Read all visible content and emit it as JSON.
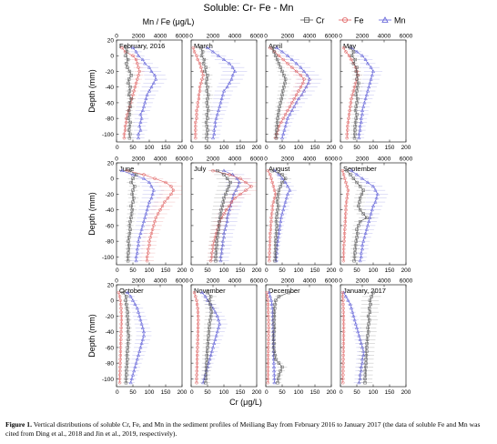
{
  "figure": {
    "title": "Soluble: Cr- Fe - Mn",
    "top_axis_label": "Mn / Fe (μg/L)",
    "bottom_axis_label": "Cr (μg/L)",
    "y_axis_label": "Depth (mm)",
    "caption_bold": "Figure 1.",
    "caption_text": "Vertical distributions of soluble Cr, Fe, and Mn in the sediment profiles of Meiliang Bay from February 2016 to January 2017 (the data of soluble Fe and Mn was cited from Ding et al., 2018 and Jin et al., 2019, respectively)."
  },
  "legend": [
    {
      "name": "Cr",
      "color": "#555555",
      "marker": "square"
    },
    {
      "name": "Fe",
      "color": "#e06060",
      "marker": "circle"
    },
    {
      "name": "Mn",
      "color": "#6060d8",
      "marker": "triangle"
    }
  ],
  "axes": {
    "depth_ticks": [
      20,
      0,
      -20,
      -40,
      -60,
      -80,
      -100
    ],
    "cr_ticks": [
      0,
      50,
      100,
      150,
      200
    ],
    "mnfe_ticks": [
      0,
      2000,
      4000,
      6000
    ],
    "cr_range": [
      0,
      200
    ],
    "mnfe_range": [
      0,
      6000
    ],
    "depth_range": [
      -110,
      20
    ]
  },
  "chart_data": {
    "type": "line",
    "depth_mm": [
      10,
      5,
      0,
      -5,
      -10,
      -15,
      -20,
      -25,
      -30,
      -35,
      -40,
      -45,
      -50,
      -55,
      -60,
      -65,
      -70,
      -75,
      -80,
      -85,
      -90,
      -95,
      -100,
      -105
    ],
    "panels": [
      {
        "month": "February, 2016",
        "Cr": [
          30,
          32,
          28,
          35,
          30,
          33,
          40,
          45,
          38,
          36,
          42,
          40,
          38,
          45,
          40,
          42,
          38,
          40,
          36,
          42,
          40,
          38,
          41,
          40
        ],
        "Fe": [
          500,
          800,
          1500,
          1800,
          1900,
          2000,
          2100,
          2000,
          1900,
          1800,
          1700,
          1600,
          1500,
          1400,
          1300,
          1200,
          1100,
          1000,
          900,
          900,
          800,
          800,
          700,
          700
        ],
        "Mn": [
          1500,
          1800,
          2000,
          2400,
          2600,
          3000,
          3200,
          3500,
          3600,
          3400,
          3200,
          3000,
          2800,
          2700,
          2600,
          2500,
          2400,
          2200,
          2300,
          2200,
          2100,
          2200,
          2000,
          2000
        ]
      },
      {
        "month": "March",
        "Cr": [
          30,
          35,
          32,
          40,
          38,
          45,
          42,
          50,
          48,
          46,
          50,
          48,
          52,
          50,
          48,
          50,
          52,
          48,
          50,
          46,
          48,
          50,
          48,
          47
        ],
        "Fe": [
          200,
          300,
          500,
          600,
          800,
          900,
          1000,
          1100,
          1000,
          900,
          800,
          800,
          700,
          700,
          600,
          600,
          500,
          500,
          500,
          400,
          400,
          400,
          400,
          400
        ],
        "Mn": [
          1500,
          2000,
          2500,
          3000,
          3500,
          3800,
          4000,
          3800,
          3700,
          3500,
          3300,
          3000,
          2900,
          2800,
          2700,
          2600,
          2500,
          2400,
          2300,
          2200,
          2200,
          2100,
          2100,
          2000
        ]
      },
      {
        "month": "April",
        "Cr": [
          20,
          25,
          30,
          35,
          40,
          45,
          50,
          55,
          60,
          58,
          55,
          52,
          50,
          48,
          45,
          42,
          40,
          38,
          36,
          35,
          34,
          33,
          32,
          32
        ],
        "Fe": [
          400,
          800,
          1200,
          1600,
          2000,
          2400,
          2800,
          3200,
          3500,
          3400,
          3200,
          3000,
          2800,
          2600,
          2400,
          2200,
          2000,
          1800,
          1600,
          1400,
          1200,
          1100,
          1000,
          900
        ],
        "Mn": [
          1000,
          1500,
          2000,
          2400,
          2800,
          3200,
          3500,
          3800,
          4000,
          3900,
          3700,
          3500,
          3300,
          3000,
          2800,
          2600,
          2400,
          2200,
          2000,
          1900,
          1800,
          1700,
          1600,
          1500
        ]
      },
      {
        "month": "May",
        "Cr": [
          30,
          40,
          35,
          45,
          40,
          50,
          48,
          52,
          50,
          55,
          52,
          50,
          48,
          52,
          50,
          48,
          46,
          50,
          48,
          46,
          45,
          44,
          44,
          43
        ],
        "Fe": [
          300,
          500,
          800,
          1000,
          1200,
          1400,
          1500,
          1600,
          1500,
          1400,
          1300,
          1200,
          1100,
          1000,
          950,
          900,
          850,
          800,
          750,
          700,
          650,
          650,
          600,
          600
        ],
        "Mn": [
          1000,
          1500,
          2000,
          2300,
          2500,
          2800,
          3000,
          2900,
          2800,
          2700,
          2600,
          2500,
          2400,
          2300,
          2200,
          2100,
          2000,
          2000,
          1900,
          1900,
          1800,
          1800,
          1700,
          1700
        ]
      },
      {
        "month": "June",
        "Cr": [
          40,
          60,
          50,
          45,
          55,
          50,
          48,
          52,
          50,
          45,
          48,
          46,
          44,
          42,
          40,
          42,
          40,
          38,
          36,
          38,
          37,
          36,
          35,
          35
        ],
        "Fe": [
          1000,
          2500,
          3500,
          4500,
          5000,
          5200,
          5000,
          4700,
          4400,
          4200,
          4000,
          3800,
          3600,
          3500,
          3400,
          3300,
          3200,
          3100,
          3000,
          3000,
          2900,
          2900,
          2800,
          2800
        ],
        "Mn": [
          500,
          1500,
          2500,
          3000,
          3200,
          3400,
          3300,
          3200,
          3000,
          2900,
          2800,
          2700,
          2600,
          2500,
          2400,
          2300,
          2200,
          2100,
          2000,
          2000,
          1900,
          1900,
          1800,
          1800
        ]
      },
      {
        "month": "July",
        "Cr": [
          80,
          100,
          110,
          120,
          115,
          110,
          105,
          100,
          98,
          95,
          92,
          90,
          88,
          86,
          85,
          84,
          82,
          80,
          78,
          78,
          77,
          76,
          75,
          75
        ],
        "Fe": [
          2000,
          3500,
          4500,
          5000,
          5500,
          5000,
          4500,
          4000,
          3700,
          3500,
          3200,
          3000,
          2800,
          2600,
          2500,
          2400,
          2300,
          2200,
          2100,
          2000,
          2000,
          1900,
          1900,
          1800
        ],
        "Mn": [
          3000,
          3800,
          4200,
          4400,
          4300,
          4100,
          3900,
          3800,
          3700,
          3600,
          3500,
          3400,
          3300,
          3300,
          3200,
          3100,
          3000,
          3000,
          2900,
          2900,
          2800,
          2800,
          2700,
          2700
        ]
      },
      {
        "month": "August",
        "Cr": [
          20,
          50,
          60,
          50,
          45,
          40,
          38,
          36,
          35,
          38,
          36,
          34,
          33,
          32,
          34,
          33,
          32,
          31,
          30,
          30,
          30,
          29,
          29,
          28
        ],
        "Fe": [
          200,
          400,
          500,
          600,
          700,
          800,
          900,
          800,
          700,
          600,
          600,
          550,
          500,
          500,
          450,
          450,
          400,
          400,
          380,
          360,
          350,
          340,
          330,
          320
        ],
        "Mn": [
          800,
          1200,
          1500,
          1800,
          2000,
          2200,
          2000,
          1900,
          1800,
          1700,
          1600,
          1500,
          1400,
          1350,
          1300,
          1250,
          1200,
          1150,
          1100,
          1050,
          1000,
          1000,
          950,
          950
        ]
      },
      {
        "month": "September",
        "Cr": [
          20,
          30,
          40,
          50,
          60,
          70,
          65,
          60,
          58,
          55,
          60,
          70,
          80,
          60,
          55,
          50,
          52,
          50,
          48,
          46,
          45,
          44,
          43,
          42
        ],
        "Fe": [
          200,
          300,
          400,
          500,
          600,
          700,
          650,
          600,
          550,
          500,
          500,
          480,
          460,
          440,
          420,
          400,
          380,
          360,
          340,
          320,
          300,
          300,
          280,
          280
        ],
        "Mn": [
          1000,
          1500,
          2000,
          2500,
          3000,
          3200,
          3400,
          3300,
          3200,
          3000,
          2900,
          2800,
          2700,
          2600,
          2500,
          2400,
          2300,
          2200,
          2100,
          2000,
          2000,
          1900,
          1900,
          1800
        ]
      },
      {
        "month": "October",
        "Cr": [
          20,
          30,
          28,
          30,
          32,
          34,
          33,
          35,
          34,
          36,
          35,
          37,
          36,
          35,
          34,
          33,
          32,
          33,
          32,
          31,
          30,
          30,
          29,
          29
        ],
        "Fe": [
          200,
          300,
          350,
          400,
          420,
          430,
          440,
          450,
          440,
          430,
          420,
          410,
          400,
          390,
          380,
          370,
          360,
          350,
          340,
          330,
          320,
          310,
          300,
          300
        ],
        "Mn": [
          1000,
          1300,
          1500,
          1700,
          1900,
          2000,
          2100,
          2200,
          2300,
          2400,
          2500,
          2500,
          2400,
          2300,
          2200,
          2100,
          2000,
          1900,
          1800,
          1700,
          1600,
          1500,
          1400,
          1300
        ]
      },
      {
        "month": "November",
        "Cr": [
          50,
          60,
          55,
          58,
          60,
          62,
          60,
          58,
          56,
          55,
          54,
          53,
          52,
          51,
          50,
          49,
          48,
          48,
          47,
          46,
          46,
          45,
          45,
          44
        ],
        "Fe": [
          300,
          400,
          500,
          550,
          600,
          620,
          640,
          650,
          640,
          630,
          620,
          610,
          600,
          590,
          580,
          570,
          560,
          550,
          540,
          530,
          520,
          510,
          500,
          500
        ],
        "Mn": [
          1000,
          1300,
          1500,
          1800,
          2000,
          2200,
          2400,
          2500,
          2600,
          2500,
          2400,
          2300,
          2200,
          2100,
          2000,
          1900,
          1800,
          1700,
          1600,
          1500,
          1400,
          1300,
          1200,
          1100
        ]
      },
      {
        "month": "December",
        "Cr": [
          70,
          40,
          30,
          28,
          27,
          26,
          26,
          25,
          25,
          26,
          25,
          24,
          24,
          25,
          24,
          26,
          28,
          30,
          40,
          50,
          45,
          40,
          38,
          36
        ],
        "Fe": [
          100,
          150,
          180,
          200,
          220,
          230,
          240,
          250,
          250,
          260,
          250,
          250,
          240,
          240,
          230,
          230,
          220,
          220,
          210,
          210,
          200,
          200,
          200,
          190
        ],
        "Mn": [
          300,
          400,
          500,
          550,
          600,
          620,
          640,
          650,
          660,
          670,
          680,
          690,
          700,
          700,
          700,
          710,
          720,
          730,
          740,
          750,
          760,
          770,
          780,
          790
        ]
      },
      {
        "month": "January, 2017",
        "Cr": [
          100,
          95,
          90,
          92,
          88,
          90,
          85,
          88,
          86,
          84,
          85,
          83,
          82,
          81,
          80,
          80,
          79,
          78,
          78,
          77,
          76,
          76,
          75,
          75
        ],
        "Fe": [
          200,
          220,
          240,
          250,
          260,
          270,
          280,
          290,
          300,
          300,
          300,
          290,
          280,
          280,
          270,
          270,
          260,
          260,
          250,
          250,
          240,
          240,
          230,
          230
        ],
        "Mn": [
          300,
          500,
          700,
          900,
          1000,
          1100,
          1200,
          1300,
          1400,
          1500,
          1600,
          1700,
          1800,
          1900,
          2000,
          2100,
          2100,
          2000,
          2000,
          1900,
          1900,
          1800,
          1800,
          1700
        ]
      }
    ]
  }
}
